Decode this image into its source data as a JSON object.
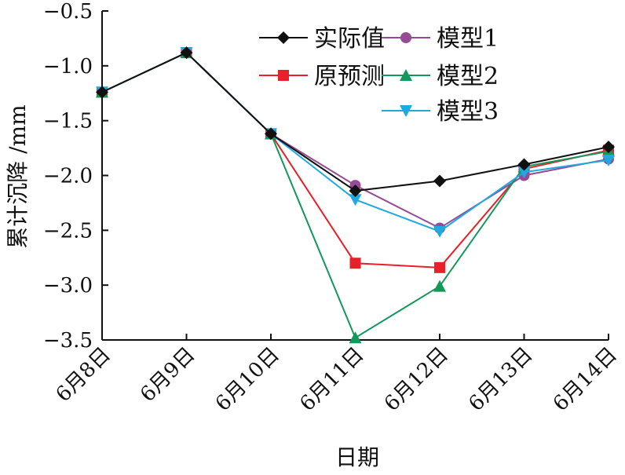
{
  "chart_data": {
    "type": "line",
    "title": "",
    "xlabel": "日期",
    "ylabel": "累计沉降 /mm",
    "categories": [
      "6月8日",
      "6月9日",
      "6月10日",
      "6月11日",
      "6月12日",
      "6月13日",
      "6月14日"
    ],
    "ylim": [
      -3.5,
      -0.5
    ],
    "yticks": [
      "-0.5",
      "-1.0",
      "-1.5",
      "-2.0",
      "-2.5",
      "-3.0",
      "-3.5"
    ],
    "ytick_values": [
      -0.5,
      -1.0,
      -1.5,
      -2.0,
      -2.5,
      -3.0,
      -3.5
    ],
    "grid": false,
    "legend_position": "top-right",
    "series": [
      {
        "name": "实际值",
        "color": "#111111",
        "marker": "diamond",
        "values": [
          -1.24,
          -0.88,
          -1.62,
          -2.14,
          -2.05,
          -1.9,
          -1.74
        ]
      },
      {
        "name": "原预测",
        "color": "#e8202a",
        "marker": "square",
        "values": [
          -1.24,
          -0.88,
          -1.62,
          -2.8,
          -2.84,
          -1.94,
          -1.77
        ]
      },
      {
        "name": "模型1",
        "color": "#964b96",
        "marker": "circle",
        "values": [
          -1.24,
          -0.88,
          -1.62,
          -2.09,
          -2.48,
          -2.0,
          -1.85
        ]
      },
      {
        "name": "模型2",
        "color": "#12985a",
        "marker": "triangle-up",
        "values": [
          -1.24,
          -0.88,
          -1.62,
          -3.48,
          -3.01,
          -1.92,
          -1.78
        ]
      },
      {
        "name": "模型3",
        "color": "#1fa9e1",
        "marker": "triangle-down",
        "values": [
          -1.24,
          -0.88,
          -1.62,
          -2.22,
          -2.51,
          -1.97,
          -1.86
        ]
      }
    ]
  }
}
